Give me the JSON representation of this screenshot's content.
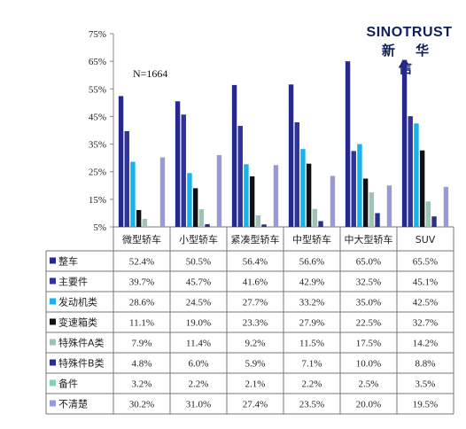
{
  "chart_data": {
    "type": "bar",
    "note": "N=1664",
    "logo": {
      "en": "SINOTRUST",
      "zh": "新 华 信"
    },
    "categories": [
      "微型轿车",
      "小型轿车",
      "紧凑型轿车",
      "中型轿车",
      "中大型轿车",
      "SUV"
    ],
    "ylim": [
      5,
      75
    ],
    "yticks": [
      "5%",
      "15%",
      "25%",
      "35%",
      "45%",
      "55%",
      "65%",
      "75%"
    ],
    "series": [
      {
        "name": "整车",
        "color": "#27298a",
        "values": [
          52.4,
          50.5,
          56.4,
          56.6,
          65.0,
          65.5
        ],
        "labels": [
          "52.4%",
          "50.5%",
          "56.4%",
          "56.6%",
          "65.0%",
          "65.5%"
        ]
      },
      {
        "name": "主要件",
        "color": "#2e3499",
        "values": [
          39.7,
          45.7,
          41.6,
          42.9,
          32.5,
          45.1
        ],
        "labels": [
          "39.7%",
          "45.7%",
          "41.6%",
          "42.9%",
          "32.5%",
          "45.1%"
        ]
      },
      {
        "name": "发动机类",
        "color": "#16b3f0",
        "values": [
          28.6,
          24.5,
          27.7,
          33.2,
          35.0,
          42.5
        ],
        "labels": [
          "28.6%",
          "24.5%",
          "27.7%",
          "33.2%",
          "35.0%",
          "42.5%"
        ]
      },
      {
        "name": "变速箱类",
        "color": "#111111",
        "values": [
          11.1,
          19.0,
          23.3,
          27.9,
          22.5,
          32.7
        ],
        "labels": [
          "11.1%",
          "19.0%",
          "23.3%",
          "27.9%",
          "22.5%",
          "32.7%"
        ]
      },
      {
        "name": "特殊件A类",
        "color": "#9cc4b5",
        "values": [
          7.9,
          11.4,
          9.2,
          11.5,
          17.5,
          14.2
        ],
        "labels": [
          "7.9%",
          "11.4%",
          "9.2%",
          "11.5%",
          "17.5%",
          "14.2%"
        ]
      },
      {
        "name": "特殊件B类",
        "color": "#2b2f88",
        "values": [
          4.8,
          6.0,
          5.9,
          7.1,
          10.0,
          8.8
        ],
        "labels": [
          "4.8%",
          "6.0%",
          "5.9%",
          "7.1%",
          "10.0%",
          "8.8%"
        ]
      },
      {
        "name": "备件",
        "color": "#86cfb0",
        "values": [
          3.2,
          2.2,
          2.1,
          2.2,
          2.5,
          3.5
        ],
        "labels": [
          "3.2%",
          "2.2%",
          "2.1%",
          "2.2%",
          "2.5%",
          "3.5%"
        ]
      },
      {
        "name": "不清楚",
        "color": "#9a99d8",
        "values": [
          30.2,
          31.0,
          27.4,
          23.5,
          20.0,
          19.5
        ],
        "labels": [
          "30.2%",
          "31.0%",
          "27.4%",
          "23.5%",
          "20.0%",
          "19.5%"
        ]
      }
    ]
  }
}
